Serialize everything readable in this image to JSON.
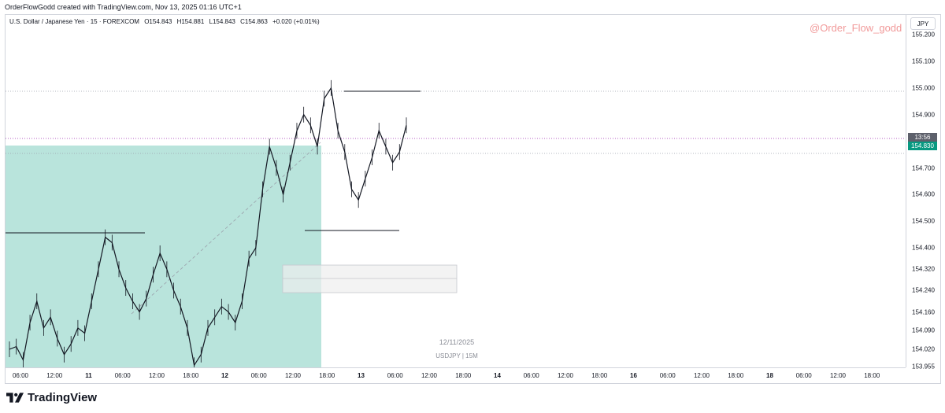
{
  "header": {
    "credit": "OrderFlowGodd created with TradingView.com, Nov 13, 2025 01:16 UTC+1"
  },
  "symbol_info": {
    "name": "U.S. Dollar / Japanese Yen · 15 · FOREXCOM",
    "open": "O154.843",
    "high": "H154.881",
    "low": "L154.843",
    "close": "C154.863",
    "change": "+0.020 (+0.01%)"
  },
  "watermark_handle": "@Order_Flow_godd",
  "currency": "JPY",
  "price_axis": {
    "labels": [
      {
        "text": "155.200",
        "value": 155.2
      },
      {
        "text": "155.100",
        "value": 155.1
      },
      {
        "text": "155.000",
        "value": 155.0
      },
      {
        "text": "154.900",
        "value": 154.9
      },
      {
        "text": "154.800",
        "value": 154.8
      },
      {
        "text": "154.700",
        "value": 154.7
      },
      {
        "text": "154.600",
        "value": 154.6
      },
      {
        "text": "154.500",
        "value": 154.5
      },
      {
        "text": "154.400",
        "value": 154.4
      },
      {
        "text": "154.320",
        "value": 154.32
      },
      {
        "text": "154.240",
        "value": 154.24
      },
      {
        "text": "154.160",
        "value": 154.16
      },
      {
        "text": "154.090",
        "value": 154.09
      },
      {
        "text": "154.020",
        "value": 154.02
      },
      {
        "text": "153.955",
        "value": 153.955
      }
    ],
    "last_price": "154.830",
    "countdown": "13:56"
  },
  "time_axis": {
    "labels": [
      {
        "text": "06:00",
        "bold": false
      },
      {
        "text": "12:00",
        "bold": false
      },
      {
        "text": "11",
        "bold": true
      },
      {
        "text": "06:00",
        "bold": false
      },
      {
        "text": "12:00",
        "bold": false
      },
      {
        "text": "18:00",
        "bold": false
      },
      {
        "text": "12",
        "bold": true
      },
      {
        "text": "06:00",
        "bold": false
      },
      {
        "text": "12:00",
        "bold": false
      },
      {
        "text": "18:00",
        "bold": false
      },
      {
        "text": "13",
        "bold": true
      },
      {
        "text": "06:00",
        "bold": false
      },
      {
        "text": "12:00",
        "bold": false
      },
      {
        "text": "18:00",
        "bold": false
      },
      {
        "text": "14",
        "bold": true
      },
      {
        "text": "06:00",
        "bold": false
      },
      {
        "text": "12:00",
        "bold": false
      },
      {
        "text": "18:00",
        "bold": false
      },
      {
        "text": "16",
        "bold": true
      },
      {
        "text": "06:00",
        "bold": false
      },
      {
        "text": "12:00",
        "bold": false
      },
      {
        "text": "18:00",
        "bold": false
      },
      {
        "text": "18",
        "bold": true
      },
      {
        "text": "06:00",
        "bold": false
      },
      {
        "text": "12:00",
        "bold": false
      },
      {
        "text": "18:00",
        "bold": false
      }
    ]
  },
  "chart_overlay": {
    "date": "12/11/2025",
    "symbol": "USDJPY | 15M"
  },
  "colors": {
    "zone_fill": "#b9e4dc",
    "candle": "#131722",
    "last_price_line": "#9c27b0",
    "last_price_badge": "#089981",
    "watermark": "#f19a9a"
  },
  "footer": {
    "brand": "TradingView"
  },
  "chart_data": {
    "type": "line",
    "series": [
      {
        "values": [
          154.02,
          154.03,
          153.98,
          154.12,
          154.2,
          154.1,
          154.14,
          154.06,
          154.0,
          154.04,
          154.1,
          154.08,
          154.2,
          154.32,
          154.44,
          154.42,
          154.32,
          154.25,
          154.2,
          154.16,
          154.21,
          154.3,
          154.38,
          154.32,
          154.24,
          154.18,
          154.1,
          153.96,
          154.0,
          154.1,
          154.14,
          154.18,
          154.16,
          154.12,
          154.2,
          154.36,
          154.4,
          154.62,
          154.78,
          154.7,
          154.6,
          154.72,
          154.84,
          154.9,
          154.86,
          154.78,
          154.96,
          155.0,
          154.84,
          154.76,
          154.62,
          154.58,
          154.66,
          154.74,
          154.84,
          154.78,
          154.72,
          154.76,
          154.86
        ]
      }
    ]
  }
}
